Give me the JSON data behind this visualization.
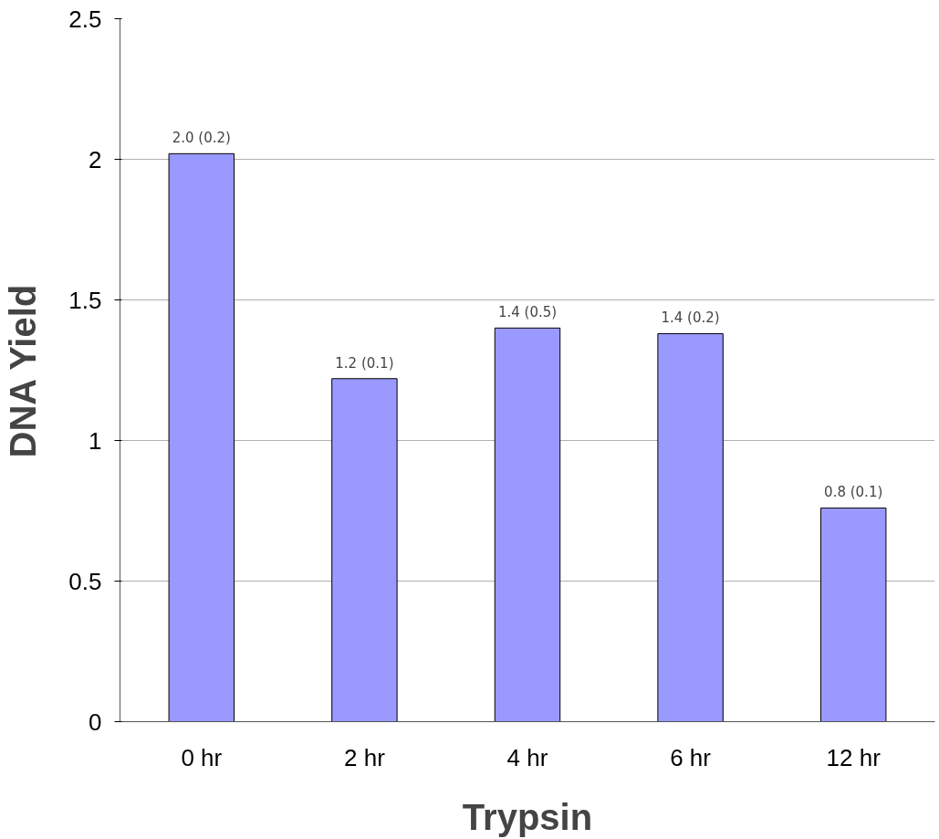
{
  "chart_data": {
    "type": "bar",
    "xlabel": "Trypsin",
    "ylabel": "DNA Yield",
    "categories": [
      "0 hr",
      "2 hr",
      "4 hr",
      "6 hr",
      "12 hr"
    ],
    "values": [
      2.02,
      1.22,
      1.4,
      1.38,
      0.76
    ],
    "value_labels": [
      "2.0 (0.2)",
      "1.2 (0.1)",
      "1.4 (0.5)",
      "1.4 (0.2)",
      "0.8 (0.1)"
    ],
    "color": "#9999ff",
    "ylim": [
      0,
      2.5
    ],
    "yticks": [
      0,
      0.5,
      1,
      1.5,
      2,
      2.5
    ],
    "grid": "y"
  }
}
